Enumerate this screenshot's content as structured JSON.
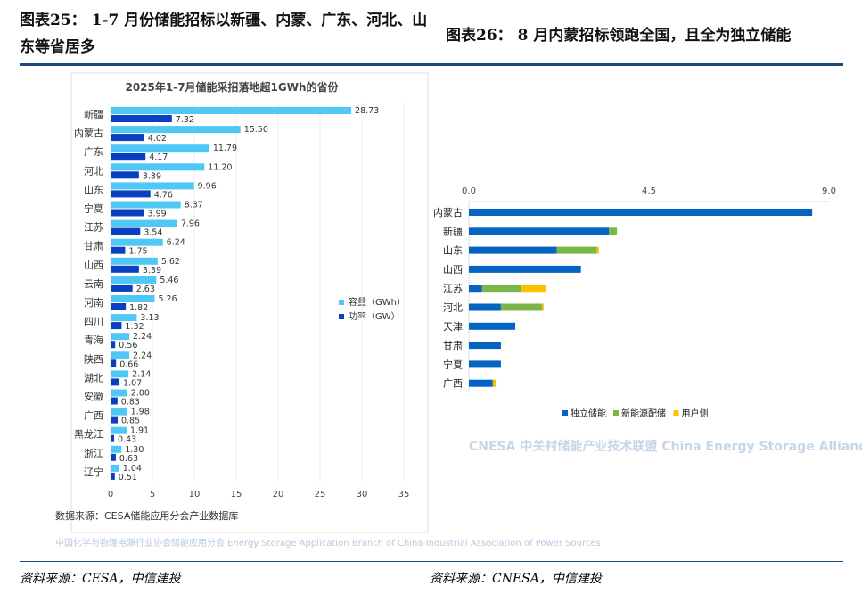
{
  "fig25_title": "图表25：  1-7 月份储能招标以新疆、内蒙、广东、河北、山东等省居多",
  "fig26_title": "图表26：  8 月内蒙招标领跑全国，且全为独立储能",
  "source_left": "资料来源：CESA，中信建投",
  "source_right": "资料来源：CNESA，中信建投",
  "colors": {
    "capacity": "#4fc8f5",
    "power": "#0b3fc1",
    "independent": "#0563c1",
    "renewable": "#7ab648",
    "user": "#ffc000",
    "rule": "#1c4a7a"
  },
  "chart_data": [
    {
      "type": "bar",
      "orientation": "horizontal",
      "title": "2025年1-7月储能采招落地超1GWh的省份",
      "categories": [
        "新疆",
        "内蒙古",
        "广东",
        "河北",
        "山东",
        "宁夏",
        "江苏",
        "甘肃",
        "山西",
        "云南",
        "河南",
        "四川",
        "青海",
        "陕西",
        "湖北",
        "安徽",
        "广西",
        "黑龙江",
        "浙江",
        "辽宁"
      ],
      "series": [
        {
          "name": "容量（GWh）",
          "values": [
            28.73,
            15.5,
            11.79,
            11.2,
            9.96,
            8.37,
            7.96,
            6.24,
            5.62,
            5.46,
            5.26,
            3.13,
            2.24,
            2.24,
            2.14,
            2.0,
            1.98,
            1.91,
            1.3,
            1.04
          ]
        },
        {
          "name": "功率（GW）",
          "values": [
            7.32,
            4.02,
            4.17,
            3.39,
            4.76,
            3.99,
            3.54,
            1.75,
            3.39,
            2.63,
            1.82,
            1.32,
            0.56,
            0.66,
            1.07,
            0.83,
            0.85,
            0.43,
            0.63,
            0.51
          ]
        }
      ],
      "xlim": [
        0,
        35
      ],
      "xticks": [
        "0",
        "5",
        "10",
        "15",
        "20",
        "25",
        "30",
        "35"
      ],
      "legend": "right-middle",
      "note": "数据来源：CESA储能应用分会产业数据库",
      "watermark": "中国化学与物理电源行业协会储能应用分会 Energy Storage Application Branch of China Industrial Association of Power Sources"
    },
    {
      "type": "bar",
      "orientation": "horizontal",
      "stacked": true,
      "categories": [
        "内蒙古",
        "新疆",
        "山东",
        "山西",
        "江苏",
        "河北",
        "天津",
        "甘肃",
        "宁夏",
        "广西"
      ],
      "series": [
        {
          "name": "独立储能",
          "values": [
            8.58,
            3.5,
            2.2,
            2.8,
            0.33,
            0.8,
            1.16,
            0.8,
            0.8,
            0.59
          ]
        },
        {
          "name": "新能源配储",
          "values": [
            0,
            0.2,
            1.0,
            0,
            0.99,
            1.03,
            0,
            0,
            0,
            0.02
          ]
        },
        {
          "name": "用户侧",
          "values": [
            0,
            0,
            0.05,
            0,
            0.61,
            0.04,
            0,
            0,
            0,
            0.06
          ]
        }
      ],
      "xlim": [
        0,
        9
      ],
      "xticks": [
        "0.0",
        "4.5",
        "9.0"
      ],
      "legend": "bottom",
      "watermark": "CNESA 中关村储能产业技术联盟 China Energy Storage Alliance"
    }
  ]
}
